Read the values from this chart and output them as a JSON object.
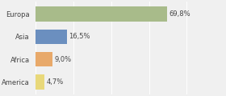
{
  "categories": [
    "Europa",
    "Asia",
    "Africa",
    "America"
  ],
  "values": [
    69.8,
    16.5,
    9.0,
    4.7
  ],
  "labels": [
    "69,8%",
    "16,5%",
    "9,0%",
    "4,7%"
  ],
  "bar_colors": [
    "#a8bb8a",
    "#6b8fbf",
    "#e8a96a",
    "#e8d87a"
  ],
  "background_color": "#f0f0f0",
  "xlim": [
    0,
    100
  ],
  "label_fontsize": 6.0,
  "tick_fontsize": 6.0,
  "bar_height": 0.65
}
